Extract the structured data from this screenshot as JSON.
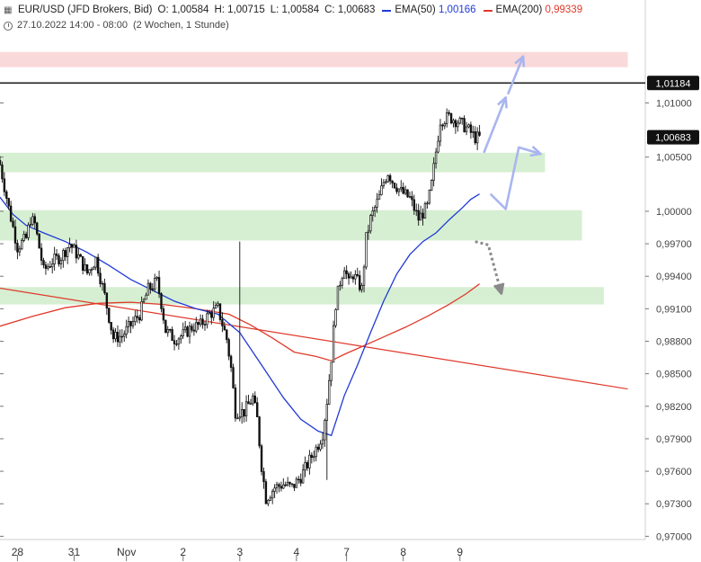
{
  "header": {
    "symbol": "EUR/USD (JFD Brokers, Bid)",
    "open_label": "O:",
    "open": "1,00584",
    "high_label": "H:",
    "high": "1,00715",
    "low_label": "L:",
    "low": "1,00584",
    "close_label": "C:",
    "close": "1,00683",
    "ema50_label": "EMA(50)",
    "ema50_value": "1,00166",
    "ema200_label": "EMA(200)",
    "ema200_value": "0,99339",
    "date_range": "27.10.2022 14:00 - 08:00",
    "period": "(2 Wochen, 1 Stunde)"
  },
  "colors": {
    "ema50": "#1f3ad6",
    "ema200": "#e0392b",
    "support_zone": "#d6efd2",
    "resistance_zone": "#f9d9d9",
    "arrow_up": "#a9b5ef",
    "arrow_down": "#8a8a8a",
    "candle": "#111111",
    "trendline": "#e0392b",
    "level_line": "#222222"
  },
  "chart_data": {
    "type": "candlestick",
    "y_axis": {
      "side": "right",
      "ticks": [
        1.01,
        1.005,
        1.0,
        0.997,
        0.994,
        0.991,
        0.988,
        0.985,
        0.982,
        0.979,
        0.976,
        0.973,
        0.97
      ],
      "tick_labels": [
        "1,01000",
        "1,00500",
        "1,00000",
        "0,99700",
        "0,99400",
        "0,99100",
        "0,98800",
        "0,98500",
        "0,98200",
        "0,97900",
        "0,97600",
        "0,97300",
        "0,97000"
      ],
      "range": [
        0.9697,
        1.0195
      ]
    },
    "x_axis": {
      "range_bars": [
        0,
        228
      ],
      "ticks": [
        {
          "bar": 8,
          "label": "28"
        },
        {
          "bar": 34,
          "label": "31"
        },
        {
          "bar": 58,
          "label": "Nov"
        },
        {
          "bar": 84,
          "label": "2"
        },
        {
          "bar": 110,
          "label": "3"
        },
        {
          "bar": 136,
          "label": "4"
        },
        {
          "bar": 159,
          "label": "7"
        },
        {
          "bar": 185,
          "label": "8"
        },
        {
          "bar": 211,
          "label": "9"
        }
      ]
    },
    "price_labels": [
      {
        "value": 1.01184,
        "text": "1,01184"
      },
      {
        "value": 1.00683,
        "text": "1,00683"
      }
    ],
    "horizontal_line": 1.01184,
    "zones": [
      {
        "kind": "resistance",
        "bar_range": [
          0,
          288
        ],
        "price_range": [
          1.0133,
          1.0147
        ]
      },
      {
        "kind": "support",
        "bar_range": [
          0,
          250
        ],
        "price_range": [
          1.0036,
          1.0054
        ]
      },
      {
        "kind": "support",
        "bar_range": [
          0,
          267
        ],
        "price_range": [
          0.9973,
          1.0001
        ]
      },
      {
        "kind": "support",
        "bar_range": [
          0,
          277
        ],
        "price_range": [
          0.9914,
          0.993
        ]
      }
    ],
    "trendline": {
      "from": [
        0,
        0.9929
      ],
      "to": [
        288,
        0.9836
      ]
    },
    "ema50_points": [
      [
        0,
        1.0013
      ],
      [
        6,
        0.9997
      ],
      [
        12,
        0.9987
      ],
      [
        20,
        0.998
      ],
      [
        30,
        0.9972
      ],
      [
        40,
        0.9962
      ],
      [
        50,
        0.995
      ],
      [
        60,
        0.9937
      ],
      [
        70,
        0.9927
      ],
      [
        80,
        0.9917
      ],
      [
        90,
        0.991
      ],
      [
        100,
        0.9905
      ],
      [
        110,
        0.9888
      ],
      [
        120,
        0.9858
      ],
      [
        130,
        0.9828
      ],
      [
        138,
        0.9808
      ],
      [
        146,
        0.9797
      ],
      [
        152,
        0.9793
      ],
      [
        158,
        0.983
      ],
      [
        164,
        0.9858
      ],
      [
        170,
        0.9888
      ],
      [
        176,
        0.9917
      ],
      [
        182,
        0.9942
      ],
      [
        188,
        0.996
      ],
      [
        194,
        0.9972
      ],
      [
        200,
        0.998
      ],
      [
        206,
        0.9992
      ],
      [
        212,
        1.0003
      ],
      [
        216,
        1.0011
      ],
      [
        220,
        1.0016
      ]
    ],
    "ema200_points": [
      [
        0,
        0.9894
      ],
      [
        15,
        0.9903
      ],
      [
        30,
        0.9911
      ],
      [
        45,
        0.9915
      ],
      [
        60,
        0.9916
      ],
      [
        75,
        0.9914
      ],
      [
        90,
        0.991
      ],
      [
        105,
        0.9905
      ],
      [
        115,
        0.9895
      ],
      [
        125,
        0.9883
      ],
      [
        135,
        0.987
      ],
      [
        145,
        0.9866
      ],
      [
        152,
        0.9862
      ],
      [
        158,
        0.9868
      ],
      [
        166,
        0.9875
      ],
      [
        176,
        0.9884
      ],
      [
        186,
        0.9893
      ],
      [
        196,
        0.9903
      ],
      [
        206,
        0.9914
      ],
      [
        214,
        0.9924
      ],
      [
        220,
        0.9933
      ]
    ],
    "close_path": [
      [
        0,
        1.0043
      ],
      [
        4,
        1.0003
      ],
      [
        8,
        0.9967
      ],
      [
        12,
        0.9975
      ],
      [
        14,
        0.9993
      ],
      [
        16,
        0.9988
      ],
      [
        20,
        0.9945
      ],
      [
        24,
        0.9954
      ],
      [
        28,
        0.9958
      ],
      [
        32,
        0.997
      ],
      [
        36,
        0.9958
      ],
      [
        40,
        0.9943
      ],
      [
        44,
        0.9956
      ],
      [
        48,
        0.9922
      ],
      [
        52,
        0.9883
      ],
      [
        56,
        0.9885
      ],
      [
        60,
        0.9895
      ],
      [
        64,
        0.9905
      ],
      [
        68,
        0.9928
      ],
      [
        72,
        0.9935
      ],
      [
        74,
        0.9915
      ],
      [
        76,
        0.989
      ],
      [
        80,
        0.9882
      ],
      [
        84,
        0.9886
      ],
      [
        88,
        0.9893
      ],
      [
        92,
        0.9895
      ],
      [
        96,
        0.9905
      ],
      [
        100,
        0.991
      ],
      [
        104,
        0.9882
      ],
      [
        106,
        0.9855
      ],
      [
        108,
        0.9815
      ],
      [
        112,
        0.9815
      ],
      [
        116,
        0.9828
      ],
      [
        118,
        0.9808
      ],
      [
        120,
        0.9765
      ],
      [
        122,
        0.9735
      ],
      [
        126,
        0.9745
      ],
      [
        130,
        0.9748
      ],
      [
        134,
        0.9745
      ],
      [
        138,
        0.9755
      ],
      [
        142,
        0.977
      ],
      [
        146,
        0.9785
      ],
      [
        148,
        0.9795
      ],
      [
        150,
        0.9825
      ],
      [
        152,
        0.9865
      ],
      [
        154,
        0.9915
      ],
      [
        156,
        0.9935
      ],
      [
        158,
        0.995
      ],
      [
        160,
        0.9933
      ],
      [
        162,
        0.9942
      ],
      [
        164,
        0.9935
      ],
      [
        166,
        0.9928
      ],
      [
        168,
        0.9975
      ],
      [
        170,
        0.9993
      ],
      [
        172,
        1.0003
      ],
      [
        174,
        1.0013
      ],
      [
        176,
        1.0027
      ],
      [
        178,
        1.0036
      ],
      [
        180,
        1.0028
      ],
      [
        184,
        1.0018
      ],
      [
        188,
        1.0012
      ],
      [
        192,
        0.9993
      ],
      [
        196,
        1.0004
      ],
      [
        198,
        1.0025
      ],
      [
        200,
        1.0055
      ],
      [
        202,
        1.0084
      ],
      [
        206,
        1.0087
      ],
      [
        210,
        1.0083
      ],
      [
        214,
        1.0077
      ],
      [
        218,
        1.0068
      ],
      [
        220,
        1.0068
      ]
    ],
    "forecast_arrows": [
      {
        "kind": "up",
        "points": [
          [
            222,
            1.0054
          ],
          [
            232,
            1.0105
          ]
        ],
        "head": true
      },
      {
        "kind": "up",
        "points": [
          [
            233,
            1.0108
          ],
          [
            240,
            1.0143
          ]
        ],
        "head": true
      },
      {
        "kind": "up",
        "points": [
          [
            225,
            1.0016
          ],
          [
            232,
            1.0002
          ],
          [
            238,
            1.0059
          ],
          [
            248,
            1.0053
          ]
        ],
        "head": true
      },
      {
        "kind": "down",
        "points": [
          [
            218,
            0.9972
          ],
          [
            224,
            0.9969
          ],
          [
            230,
            0.9924
          ]
        ],
        "head": true
      }
    ]
  }
}
